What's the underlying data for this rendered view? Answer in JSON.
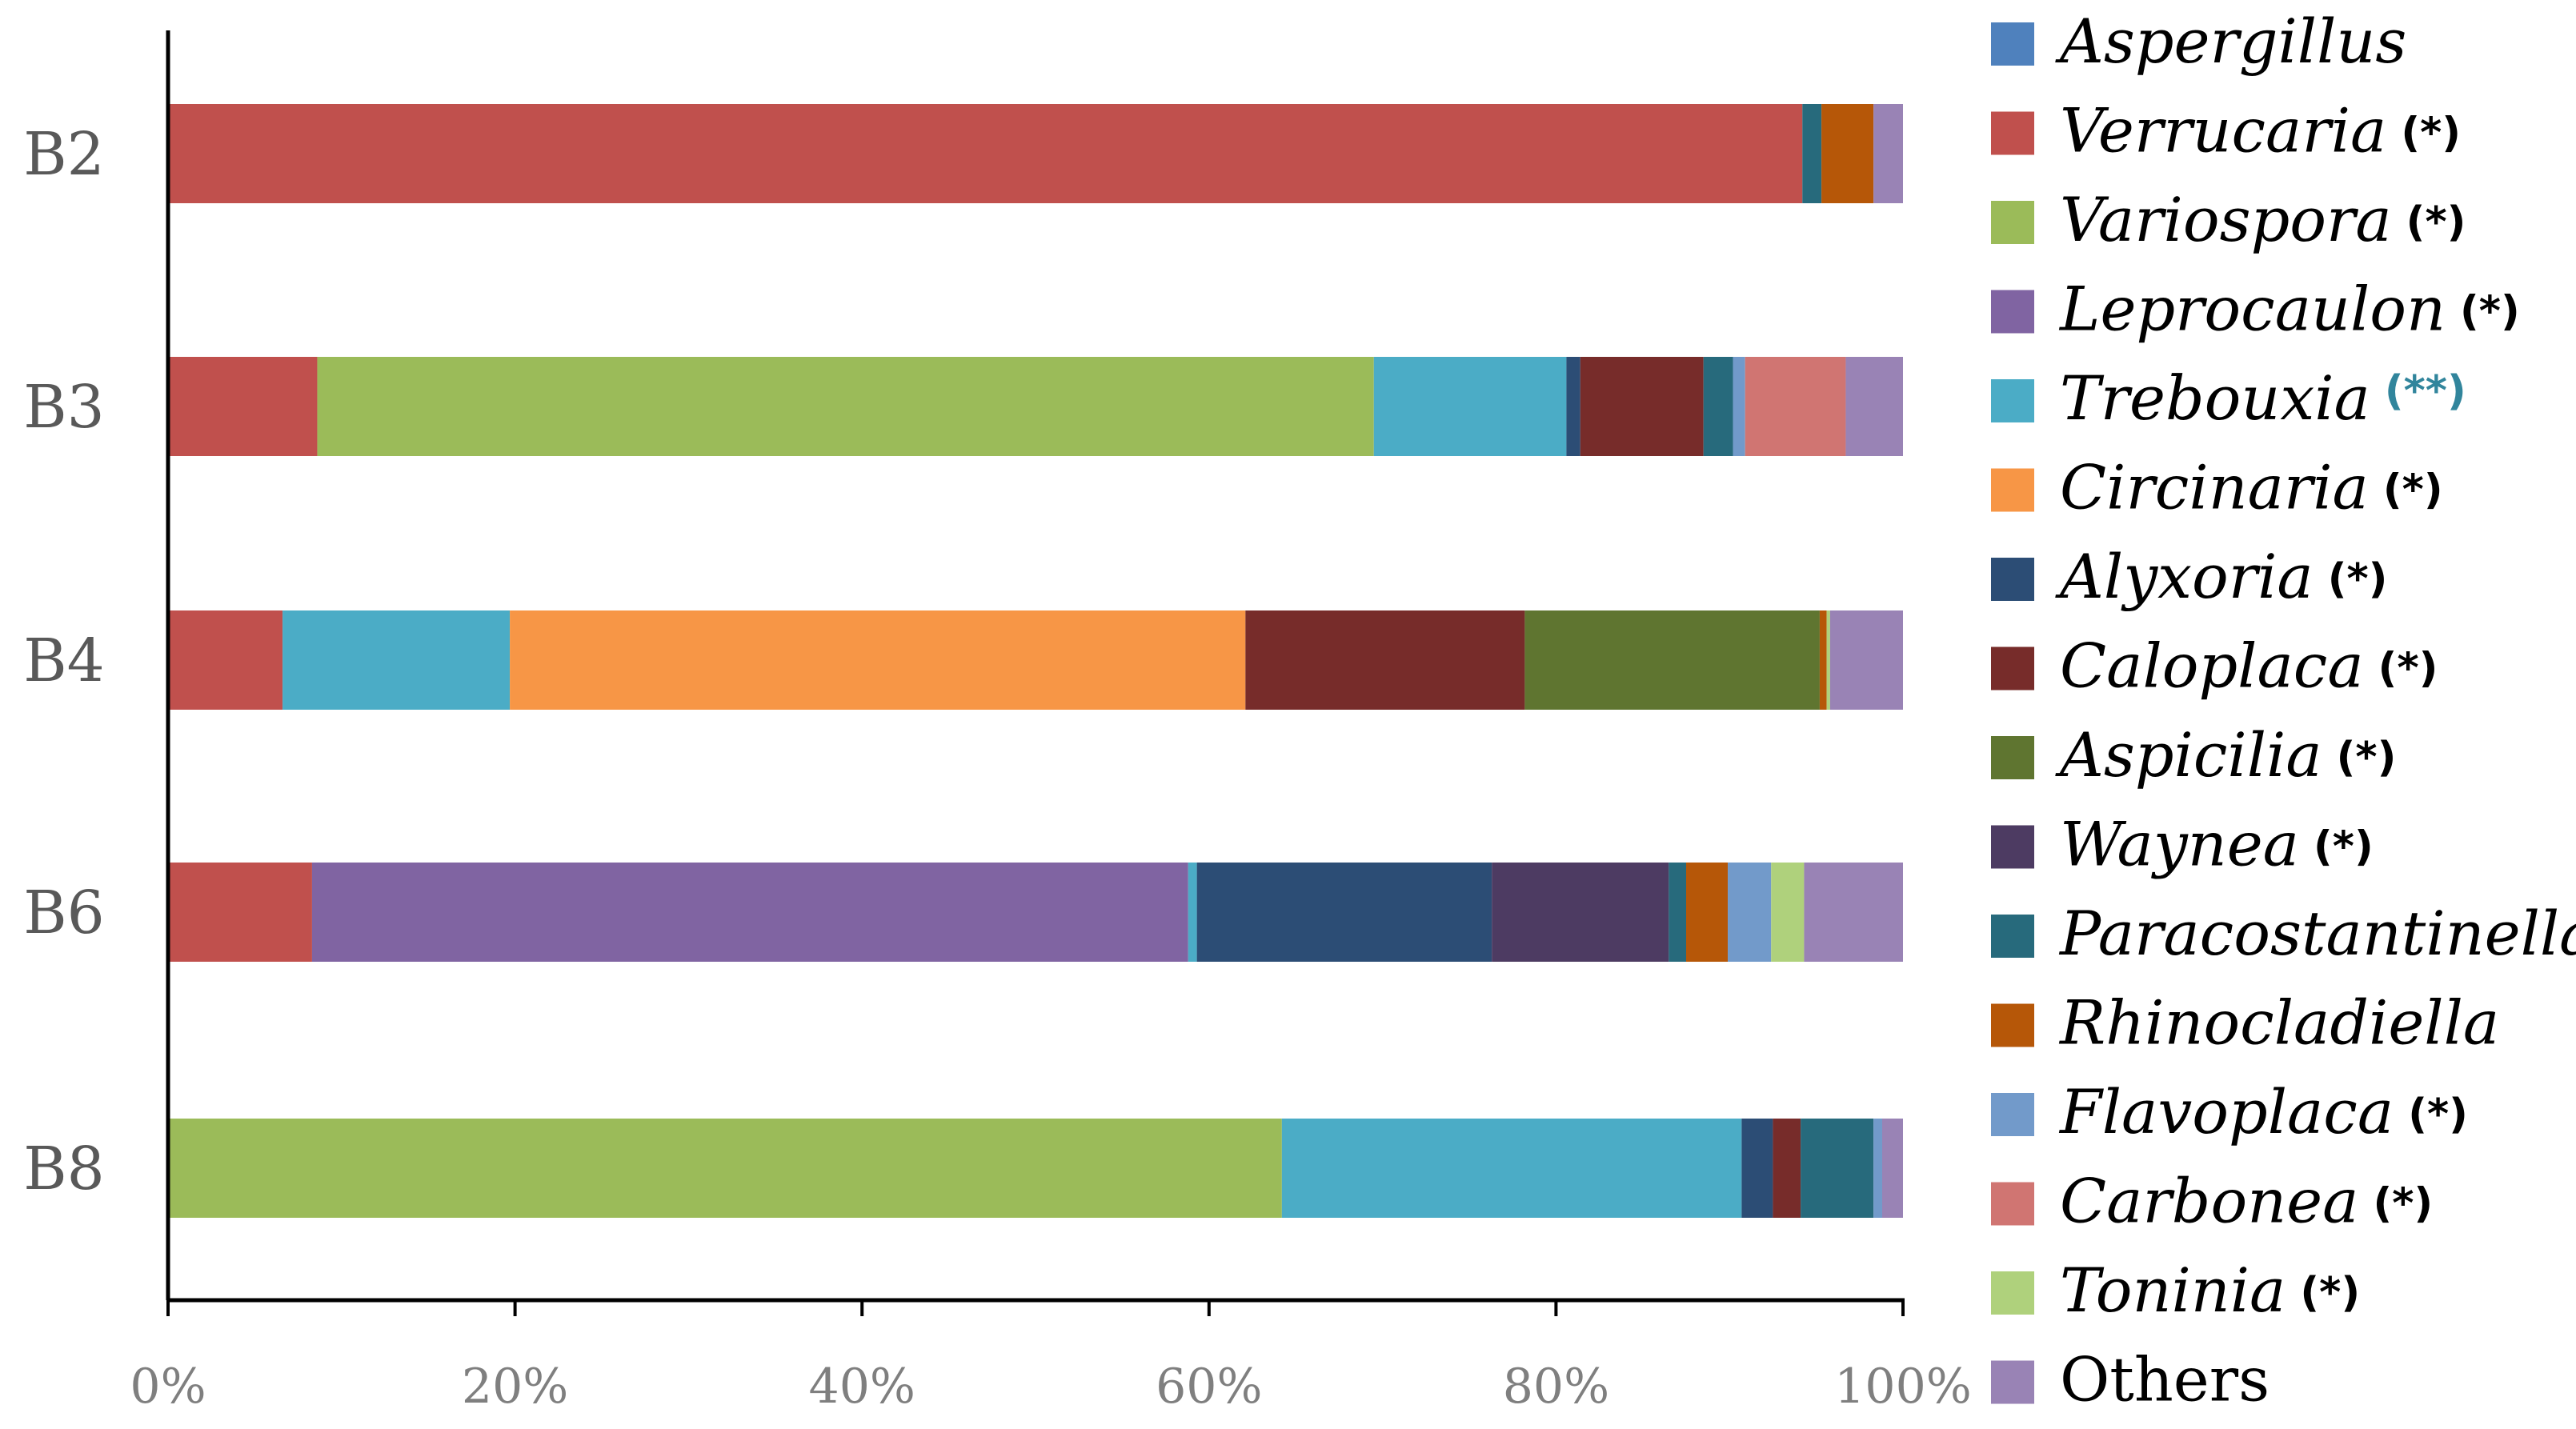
{
  "chart_data": {
    "type": "bar",
    "orientation": "horizontal",
    "stacked": "percent",
    "categories": [
      "B2",
      "B3",
      "B4",
      "B6",
      "B8"
    ],
    "x_ticks": [
      "0%",
      "20%",
      "40%",
      "60%",
      "80%",
      "100%"
    ],
    "xlim": [
      0,
      100
    ],
    "grid": false,
    "legend_position": "right",
    "series": [
      {
        "name": "Aspergillus",
        "mark": "",
        "color": "#4F81BD",
        "values": [
          0,
          0,
          0,
          0,
          0
        ]
      },
      {
        "name": "Verrucaria",
        "mark": "(*)",
        "color": "#C0504D",
        "values": [
          94.2,
          8.6,
          6.6,
          8.3,
          0
        ]
      },
      {
        "name": "Variospora",
        "mark": "(*)",
        "color": "#9BBB59",
        "values": [
          0,
          60.9,
          0,
          0,
          64.2
        ]
      },
      {
        "name": "Leprocaulon",
        "mark": "(*)",
        "color": "#8064A2",
        "values": [
          0,
          0,
          0,
          50.5,
          0
        ]
      },
      {
        "name": "Trebouxia",
        "mark": "(**)",
        "color": "#4BACC6",
        "highlight": true,
        "values": [
          0,
          11.1,
          13.1,
          0.5,
          26.5
        ]
      },
      {
        "name": "Circinaria",
        "mark": "(*)",
        "color": "#F79646",
        "values": [
          0,
          0,
          42.4,
          0,
          0
        ]
      },
      {
        "name": "Alyxoria",
        "mark": "(*)",
        "color": "#2C4D75",
        "values": [
          0,
          0.8,
          0,
          17.0,
          1.8
        ]
      },
      {
        "name": "Caloplaca",
        "mark": "(*)",
        "color": "#772C2A",
        "values": [
          0,
          7.1,
          16.1,
          0,
          1.6
        ]
      },
      {
        "name": "Aspicilia",
        "mark": "(*)",
        "color": "#5F7530",
        "values": [
          0,
          0,
          17.0,
          0,
          0
        ]
      },
      {
        "name": "Waynea",
        "mark": "(*)",
        "color": "#4D3B62",
        "values": [
          0,
          0,
          0,
          10.2,
          0
        ]
      },
      {
        "name": "Paracostantinella",
        "mark": "",
        "color": "#276A7C",
        "values": [
          1.1,
          1.7,
          0,
          1.0,
          4.2
        ]
      },
      {
        "name": "Rhinocladiella",
        "mark": "",
        "color": "#B65708",
        "values": [
          3.0,
          0,
          0.4,
          2.4,
          0
        ]
      },
      {
        "name": "Flavoplaca",
        "mark": "(*)",
        "color": "#729ACA",
        "values": [
          0,
          0.7,
          0,
          2.5,
          0.5
        ]
      },
      {
        "name": "Carbonea",
        "mark": "(*)",
        "color": "#D07572",
        "values": [
          0,
          5.8,
          0,
          0,
          0
        ]
      },
      {
        "name": "Toninia",
        "mark": "(*)",
        "color": "#AFD17C",
        "values": [
          0,
          0,
          0.2,
          1.9,
          0
        ]
      },
      {
        "name": "Others",
        "mark": "",
        "color": "#9983B5",
        "plain": true,
        "values": [
          1.7,
          3.3,
          4.2,
          5.7,
          1.2
        ]
      }
    ]
  }
}
